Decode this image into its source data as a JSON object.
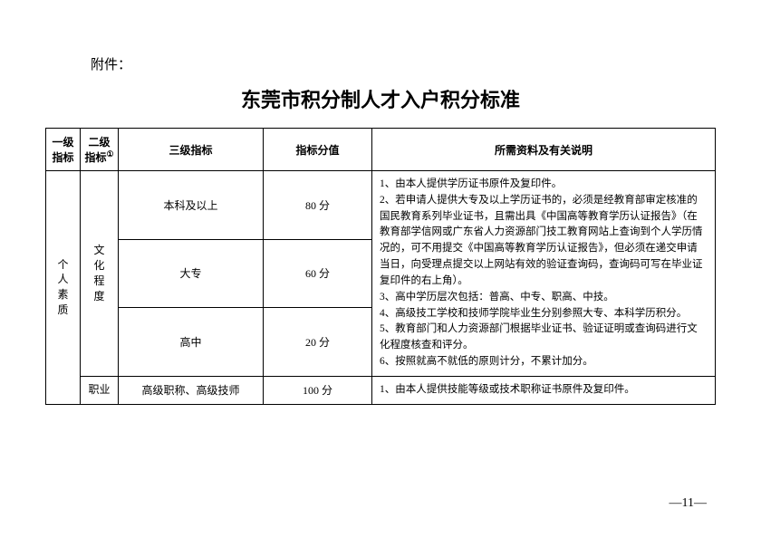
{
  "prefix": "附件：",
  "title": "东莞市积分制人才入户积分标准",
  "headers": {
    "l1": "一级指标",
    "l2": "二级指标",
    "l2_sup": "①",
    "l3": "三级指标",
    "l4": "指标分值",
    "desc": "所需资料及有关说明"
  },
  "level1": "个人素质",
  "level2_culture": "文化程度",
  "level2_occupation": "职业",
  "rows": {
    "r1": {
      "l3": "本科及以上",
      "score": "80 分"
    },
    "r2": {
      "l3": "大专",
      "score": "60 分"
    },
    "r3": {
      "l3": "高中",
      "score": "20 分"
    },
    "r4": {
      "l3": "高级职称、高级技师",
      "score": "100 分"
    }
  },
  "culture_notes": [
    "1、由本人提供学历证书原件及复印件。",
    "2、若申请人提供大专及以上学历证书的，必须是经教育部审定核准的国民教育系列毕业证书，且需出具《中国高等教育学历认证报告》（在教育部学信网或广东省人力资源部门技工教育网站上查询到个人学历情况的，可不用提交《中国高等教育学历认证报告》，但必须在递交申请当日，向受理点提交以上网站有效的验证查询码，查询码可写在毕业证复印件的右上角）。",
    "3、高中学历层次包括：普高、中专、职高、中技。",
    "4、高级技工学校和技师学院毕业生分别参照大专、本科学历积分。",
    "5、教育部门和人力资源部门根据毕业证书、验证证明或查询码进行文化程度核查和评分。",
    "6、按照就高不就低的原则计分，不累计加分。"
  ],
  "occupation_note": "1、由本人提供技能等级或技术职称证书原件及复印件。",
  "pagenum": "—11—"
}
